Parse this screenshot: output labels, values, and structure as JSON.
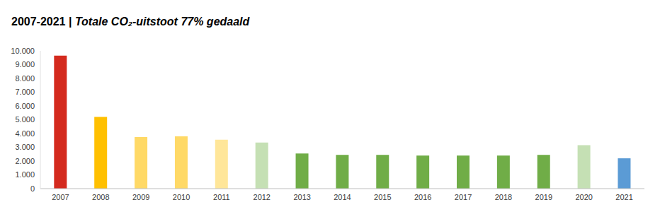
{
  "chart_data": {
    "type": "bar",
    "title": "2007-2021 | Totale CO₂-uitstoot 77% gedaald",
    "categories": [
      "2007",
      "2008",
      "2009",
      "2010",
      "2011",
      "2012",
      "2013",
      "2014",
      "2015",
      "2016",
      "2017",
      "2018",
      "2019",
      "2020",
      "2021"
    ],
    "values": [
      9650,
      5200,
      3750,
      3800,
      3550,
      3350,
      2550,
      2450,
      2450,
      2400,
      2400,
      2400,
      2450,
      3150,
      2200
    ],
    "colors": [
      "#d42a1e",
      "#ffc000",
      "#ffd966",
      "#ffd966",
      "#ffe699",
      "#c5e0b4",
      "#70ad47",
      "#70ad47",
      "#70ad47",
      "#70ad47",
      "#70ad47",
      "#70ad47",
      "#70ad47",
      "#c5e0b4",
      "#5b9bd5"
    ],
    "ylim": [
      0,
      10000
    ],
    "yticks": [
      0,
      {
        "value": 1000,
        "label": "1.000"
      },
      {
        "value": 2000,
        "label": "2.000"
      },
      {
        "value": 3000,
        "label": "3.000"
      },
      {
        "value": 4000,
        "label": "4.000"
      },
      {
        "value": 5000,
        "label": "5.000"
      },
      {
        "value": 6000,
        "label": "6.000"
      },
      {
        "value": 7000,
        "label": "7.000"
      },
      {
        "value": 8000,
        "label": "8.000"
      },
      {
        "value": 9000,
        "label": "9.000"
      },
      {
        "value": 10000,
        "label": "10.000"
      }
    ],
    "grid": false
  }
}
